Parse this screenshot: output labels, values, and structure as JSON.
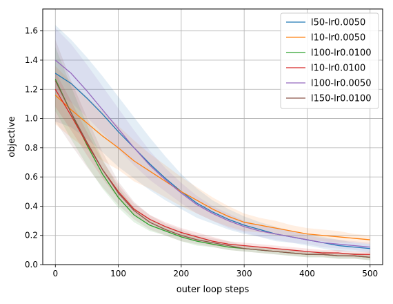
{
  "chart_data": {
    "type": "line",
    "title": "",
    "xlabel": "outer loop steps",
    "ylabel": "objective",
    "xlim": [
      -20,
      520
    ],
    "ylim": [
      0.0,
      1.75
    ],
    "xticks": [
      0,
      100,
      200,
      300,
      400,
      500
    ],
    "yticks": [
      0.0,
      0.2,
      0.4,
      0.6,
      0.8,
      1.0,
      1.2,
      1.4,
      1.6
    ],
    "tick_labels_x": [
      "0",
      "100",
      "200",
      "300",
      "400",
      "500"
    ],
    "tick_labels_y": [
      "0.0",
      "0.2",
      "0.4",
      "0.6",
      "0.8",
      "1.0",
      "1.2",
      "1.4",
      "1.6"
    ],
    "grid": true,
    "legend_position": "top-right",
    "x": [
      0,
      25,
      50,
      75,
      100,
      125,
      150,
      175,
      200,
      225,
      250,
      275,
      300,
      325,
      350,
      375,
      400,
      425,
      450,
      475,
      500
    ],
    "series": [
      {
        "name": "l50-lr0.0050",
        "color": "#1f77b4",
        "values": [
          1.31,
          1.24,
          1.14,
          1.03,
          0.91,
          0.8,
          0.69,
          0.59,
          0.5,
          0.42,
          0.36,
          0.31,
          0.27,
          0.24,
          0.21,
          0.19,
          0.17,
          0.15,
          0.13,
          0.12,
          0.11
        ],
        "band": [
          0.33,
          0.3,
          0.28,
          0.26,
          0.24,
          0.21,
          0.18,
          0.15,
          0.12,
          0.1,
          0.08,
          0.07,
          0.06,
          0.05,
          0.05,
          0.04,
          0.04,
          0.04,
          0.04,
          0.03,
          0.03
        ]
      },
      {
        "name": "l10-lr0.0050",
        "color": "#ff7f0e",
        "values": [
          1.16,
          1.06,
          0.97,
          0.88,
          0.8,
          0.71,
          0.64,
          0.57,
          0.5,
          0.44,
          0.38,
          0.33,
          0.29,
          0.27,
          0.25,
          0.23,
          0.21,
          0.2,
          0.19,
          0.18,
          0.17
        ],
        "band": [
          0.2,
          0.19,
          0.18,
          0.17,
          0.15,
          0.14,
          0.12,
          0.11,
          0.1,
          0.09,
          0.08,
          0.07,
          0.06,
          0.05,
          0.05,
          0.04,
          0.04,
          0.04,
          0.04,
          0.03,
          0.03
        ]
      },
      {
        "name": "l100-lr0.0100",
        "color": "#2ca02c",
        "values": [
          1.27,
          1.04,
          0.82,
          0.62,
          0.46,
          0.34,
          0.27,
          0.23,
          0.19,
          0.16,
          0.14,
          0.12,
          0.11,
          0.1,
          0.09,
          0.08,
          0.07,
          0.07,
          0.06,
          0.06,
          0.05
        ],
        "band": [
          0.22,
          0.18,
          0.14,
          0.1,
          0.07,
          0.05,
          0.04,
          0.03,
          0.03,
          0.03,
          0.02,
          0.02,
          0.02,
          0.02,
          0.02,
          0.02,
          0.02,
          0.02,
          0.02,
          0.02,
          0.02
        ]
      },
      {
        "name": "l10-lr0.0100",
        "color": "#d62728",
        "values": [
          1.2,
          1.02,
          0.83,
          0.65,
          0.5,
          0.38,
          0.31,
          0.26,
          0.22,
          0.19,
          0.16,
          0.14,
          0.13,
          0.12,
          0.11,
          0.1,
          0.09,
          0.08,
          0.08,
          0.07,
          0.07
        ],
        "band": [
          0.12,
          0.1,
          0.08,
          0.06,
          0.05,
          0.04,
          0.03,
          0.03,
          0.03,
          0.03,
          0.03,
          0.02,
          0.02,
          0.02,
          0.02,
          0.02,
          0.02,
          0.02,
          0.02,
          0.02,
          0.02
        ]
      },
      {
        "name": "l100-lr0.0050",
        "color": "#9467bd",
        "values": [
          1.4,
          1.31,
          1.19,
          1.06,
          0.93,
          0.8,
          0.68,
          0.58,
          0.49,
          0.41,
          0.35,
          0.3,
          0.26,
          0.23,
          0.21,
          0.19,
          0.17,
          0.15,
          0.14,
          0.13,
          0.12
        ],
        "band": [
          0.22,
          0.2,
          0.18,
          0.16,
          0.14,
          0.12,
          0.1,
          0.08,
          0.07,
          0.06,
          0.05,
          0.05,
          0.04,
          0.04,
          0.04,
          0.04,
          0.03,
          0.03,
          0.03,
          0.03,
          0.03
        ]
      },
      {
        "name": "l150-lr0.0100",
        "color": "#8c564b",
        "values": [
          1.26,
          1.04,
          0.84,
          0.65,
          0.49,
          0.37,
          0.29,
          0.24,
          0.2,
          0.17,
          0.15,
          0.13,
          0.11,
          0.1,
          0.09,
          0.08,
          0.07,
          0.07,
          0.06,
          0.06,
          0.05
        ],
        "band": [
          0.28,
          0.22,
          0.17,
          0.12,
          0.08,
          0.06,
          0.05,
          0.04,
          0.04,
          0.03,
          0.03,
          0.03,
          0.02,
          0.02,
          0.02,
          0.02,
          0.02,
          0.02,
          0.02,
          0.02,
          0.02
        ]
      }
    ]
  }
}
